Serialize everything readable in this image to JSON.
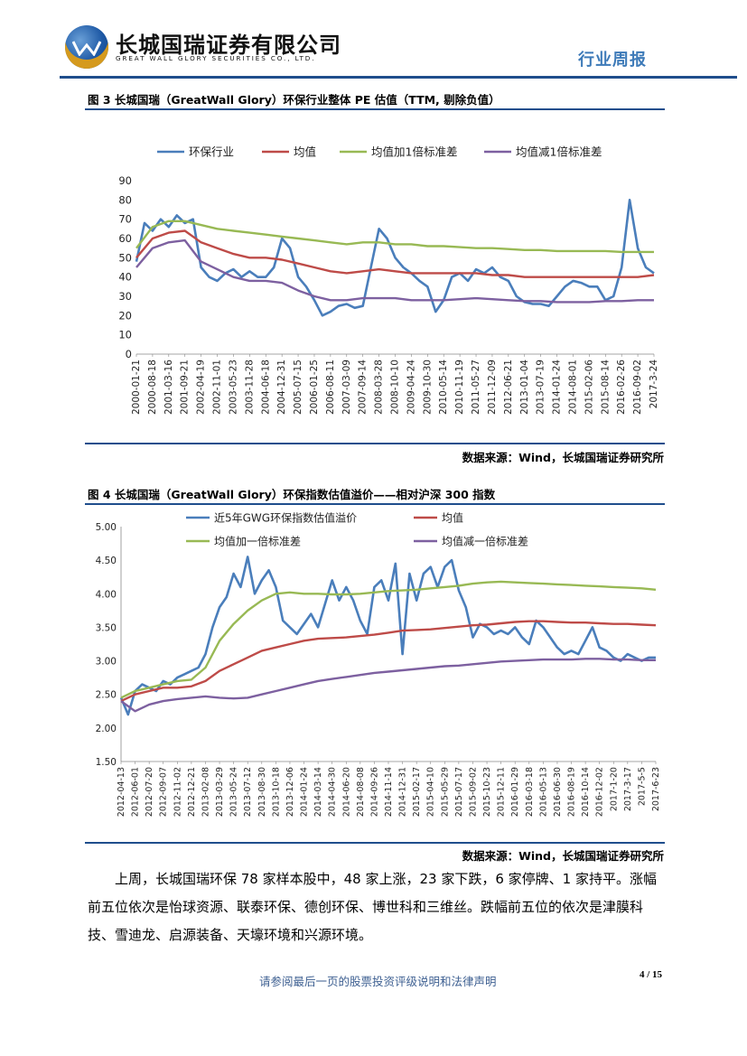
{
  "header": {
    "company_cn": "长城国瑞证券有限公司",
    "company_en": "GREAT WALL GLORY SECURITIES CO., LTD.",
    "doc_type": "行业周报"
  },
  "figure3": {
    "title": "图 3 长城国瑞（GreatWall Glory）环保行业整体 PE 估值（TTM, 剔除负值）",
    "source": "数据来源：Wind，长城国瑞证券研究所"
  },
  "figure4": {
    "title": "图 4 长城国瑞（GreatWall Glory）环保指数估值溢价——相对沪深 300 指数",
    "source": "数据来源：Wind，长城国瑞证券研究所"
  },
  "chart_data": [
    {
      "type": "line",
      "title": "",
      "series_names": [
        "环保行业",
        "均值",
        "均值加1倍标准差",
        "均值减1倍标准差"
      ],
      "series_colors": [
        "#4a7ebb",
        "#be4b48",
        "#98b954",
        "#7d60a0"
      ],
      "legend": "top",
      "ylim": [
        0,
        90
      ],
      "yticks": [
        "0",
        "10",
        "20",
        "30",
        "40",
        "50",
        "60",
        "70",
        "80",
        "90"
      ],
      "x_ticks": [
        "2000-01-21",
        "2000-08-18",
        "2001-03-16",
        "2001-09-21",
        "2002-04-19",
        "2002-11-01",
        "2003-05-23",
        "2003-11-28",
        "2004-06-18",
        "2004-12-31",
        "2005-07-15",
        "2006-01-25",
        "2006-08-11",
        "2007-03-09",
        "2007-09-14",
        "2008-03-28",
        "2008-10-10",
        "2009-04-24",
        "2009-10-30",
        "2010-05-14",
        "2010-11-19",
        "2011-05-27",
        "2011-12-09",
        "2012-06-21",
        "2013-01-04",
        "2013-07-19",
        "2014-01-24",
        "2014-08-01",
        "2015-02-06",
        "2015-08-14",
        "2016-02-26",
        "2016-09-02",
        "2017-3-24"
      ],
      "series": [
        {
          "name": "环保行业",
          "x": [
            0,
            0.5,
            1,
            1.5,
            2,
            2.5,
            3,
            3.5,
            4,
            4.5,
            5,
            5.5,
            6,
            6.5,
            7,
            7.5,
            8,
            8.5,
            9,
            9.5,
            10,
            10.5,
            11,
            11.5,
            12,
            12.5,
            13,
            13.5,
            14,
            14.5,
            15,
            15.5,
            16,
            16.5,
            17,
            17.5,
            18,
            18.5,
            19,
            19.5,
            20,
            20.5,
            21,
            21.5,
            22,
            22.5,
            23,
            23.5,
            24,
            24.5,
            25,
            25.5,
            26,
            26.5,
            27,
            27.5,
            28,
            28.5,
            29,
            29.5,
            30,
            30.5,
            31,
            31.5,
            32
          ],
          "values": [
            48,
            68,
            64,
            70,
            66,
            72,
            68,
            70,
            45,
            40,
            38,
            42,
            44,
            40,
            43,
            40,
            40,
            45,
            60,
            55,
            40,
            35,
            28,
            20,
            22,
            25,
            26,
            24,
            25,
            45,
            65,
            60,
            50,
            45,
            42,
            38,
            35,
            22,
            28,
            40,
            42,
            38,
            44,
            42,
            45,
            40,
            38,
            30,
            27,
            26,
            26,
            25,
            30,
            35,
            38,
            37,
            35,
            35,
            28,
            30,
            45,
            80,
            55,
            45,
            42
          ]
        },
        {
          "name": "均值",
          "x": [
            0,
            1,
            2,
            3,
            4,
            5,
            6,
            7,
            8,
            9,
            10,
            11,
            12,
            13,
            14,
            15,
            16,
            17,
            18,
            19,
            20,
            21,
            22,
            23,
            24,
            25,
            26,
            27,
            28,
            29,
            30,
            31,
            32
          ],
          "values": [
            50,
            60,
            63,
            64,
            58,
            55,
            52,
            50,
            50,
            49,
            47,
            45,
            43,
            42,
            43,
            44,
            43,
            42,
            42,
            42,
            42,
            42,
            41,
            41,
            40,
            40,
            40,
            40,
            40,
            40,
            40,
            40,
            41
          ]
        },
        {
          "name": "均值加1倍标准差",
          "x": [
            0,
            1,
            2,
            3,
            4,
            5,
            6,
            7,
            8,
            9,
            10,
            11,
            12,
            13,
            14,
            15,
            16,
            17,
            18,
            19,
            20,
            21,
            22,
            23,
            24,
            25,
            26,
            27,
            28,
            29,
            30,
            31,
            32
          ],
          "values": [
            55,
            66,
            69,
            69,
            67,
            65,
            64,
            63,
            62,
            61,
            60,
            59,
            58,
            57,
            58,
            58,
            57,
            57,
            56,
            56,
            55.5,
            55,
            55,
            54.5,
            54,
            54,
            53.5,
            53.5,
            53.5,
            53.5,
            53,
            53,
            53
          ]
        },
        {
          "name": "均值减1倍标准差",
          "x": [
            0,
            1,
            2,
            3,
            4,
            5,
            6,
            7,
            8,
            9,
            10,
            11,
            12,
            13,
            14,
            15,
            16,
            17,
            18,
            19,
            20,
            21,
            22,
            23,
            24,
            25,
            26,
            27,
            28,
            29,
            30,
            31,
            32
          ],
          "values": [
            45,
            55,
            58,
            59,
            48,
            44,
            40,
            38,
            38,
            37,
            33,
            30,
            28,
            28,
            29,
            29,
            29,
            28,
            28,
            28,
            28.5,
            29,
            28.5,
            28,
            27.5,
            27.5,
            27,
            27,
            27,
            27.5,
            27.5,
            28,
            28
          ]
        }
      ]
    },
    {
      "type": "line",
      "title": "",
      "series_names": [
        "近5年GWG环保指数估值溢价",
        "均值",
        "均值加一倍标准差",
        "均值减一倍标准差"
      ],
      "series_colors": [
        "#4a7ebb",
        "#be4b48",
        "#98b954",
        "#7d60a0"
      ],
      "legend": "top",
      "ylim": [
        1.5,
        5.0
      ],
      "yticks": [
        "1.50",
        "2.00",
        "2.50",
        "3.00",
        "3.50",
        "4.00",
        "4.50",
        "5.00"
      ],
      "x_ticks": [
        "2012-04-13",
        "2012-06-01",
        "2012-07-20",
        "2012-09-07",
        "2012-11-02",
        "2012-12-21",
        "2013-02-08",
        "2013-03-29",
        "2013-05-24",
        "2013-07-12",
        "2013-08-30",
        "2013-10-18",
        "2013-12-06",
        "2014-01-24",
        "2014-03-14",
        "2014-04-30",
        "2014-06-20",
        "2014-08-08",
        "2014-09-26",
        "2014-11-14",
        "2014-12-31",
        "2015-02-17",
        "2015-04-10",
        "2015-05-29",
        "2015-07-17",
        "2015-09-02",
        "2015-10-23",
        "2015-12-11",
        "2016-01-29",
        "2016-03-18",
        "2016-05-13",
        "2016-06-30",
        "2016-08-19",
        "2016-10-14",
        "2016-12-02",
        "2017-1-20",
        "2017-3-17",
        "2017-5-5",
        "2017-6-23"
      ],
      "series": [
        {
          "name": "近5年GWG环保指数估值溢价",
          "x": [
            0,
            0.5,
            1,
            1.5,
            2,
            2.5,
            3,
            3.5,
            4,
            4.5,
            5,
            5.5,
            6,
            6.5,
            7,
            7.5,
            8,
            8.5,
            9,
            9.5,
            10,
            10.5,
            11,
            11.5,
            12,
            12.5,
            13,
            13.5,
            14,
            14.5,
            15,
            15.5,
            16,
            16.5,
            17,
            17.5,
            18,
            18.5,
            19,
            19.5,
            20,
            20.5,
            21,
            21.5,
            22,
            22.5,
            23,
            23.5,
            24,
            24.5,
            25,
            25.5,
            26,
            26.5,
            27,
            27.5,
            28,
            28.5,
            29,
            29.5,
            30,
            30.5,
            31,
            31.5,
            32,
            32.5,
            33,
            33.5,
            34,
            34.5,
            35,
            35.5,
            36,
            36.5,
            37,
            37.5,
            38
          ],
          "values": [
            2.45,
            2.2,
            2.55,
            2.65,
            2.6,
            2.55,
            2.7,
            2.65,
            2.75,
            2.8,
            2.85,
            2.9,
            3.1,
            3.5,
            3.8,
            3.95,
            4.3,
            4.1,
            4.55,
            4.0,
            4.2,
            4.35,
            4.1,
            3.6,
            3.5,
            3.4,
            3.55,
            3.7,
            3.5,
            3.85,
            4.2,
            3.9,
            4.1,
            3.9,
            3.6,
            3.4,
            4.1,
            4.2,
            3.9,
            4.45,
            3.1,
            4.3,
            3.9,
            4.3,
            4.4,
            4.1,
            4.4,
            4.5,
            4.05,
            3.8,
            3.35,
            3.55,
            3.5,
            3.4,
            3.45,
            3.4,
            3.5,
            3.35,
            3.25,
            3.6,
            3.5,
            3.35,
            3.2,
            3.1,
            3.15,
            3.1,
            3.3,
            3.5,
            3.2,
            3.15,
            3.05,
            3.0,
            3.1,
            3.05,
            3.0,
            3.05,
            3.05
          ]
        },
        {
          "name": "均值",
          "x": [
            0,
            1,
            2,
            3,
            4,
            5,
            6,
            7,
            8,
            9,
            10,
            11,
            12,
            13,
            14,
            15,
            16,
            17,
            18,
            19,
            20,
            21,
            22,
            23,
            24,
            25,
            26,
            27,
            28,
            29,
            30,
            31,
            32,
            33,
            34,
            35,
            36,
            37,
            38
          ],
          "values": [
            2.4,
            2.5,
            2.55,
            2.6,
            2.6,
            2.62,
            2.7,
            2.85,
            2.95,
            3.05,
            3.15,
            3.2,
            3.25,
            3.3,
            3.33,
            3.34,
            3.35,
            3.37,
            3.39,
            3.42,
            3.45,
            3.46,
            3.47,
            3.49,
            3.51,
            3.53,
            3.54,
            3.56,
            3.58,
            3.59,
            3.59,
            3.58,
            3.57,
            3.57,
            3.56,
            3.55,
            3.55,
            3.54,
            3.53
          ]
        },
        {
          "name": "均值加一倍标准差",
          "x": [
            0,
            1,
            2,
            3,
            4,
            5,
            6,
            7,
            8,
            9,
            10,
            11,
            12,
            13,
            14,
            15,
            16,
            17,
            18,
            19,
            20,
            21,
            22,
            23,
            24,
            25,
            26,
            27,
            28,
            29,
            30,
            31,
            32,
            33,
            34,
            35,
            36,
            37,
            38
          ],
          "values": [
            2.45,
            2.55,
            2.6,
            2.65,
            2.7,
            2.72,
            2.9,
            3.3,
            3.55,
            3.75,
            3.9,
            4.0,
            4.02,
            4.0,
            4.0,
            3.99,
            3.99,
            4.0,
            4.02,
            4.04,
            4.05,
            4.06,
            4.08,
            4.1,
            4.12,
            4.15,
            4.17,
            4.18,
            4.17,
            4.16,
            4.15,
            4.14,
            4.13,
            4.12,
            4.11,
            4.1,
            4.09,
            4.08,
            4.06
          ]
        },
        {
          "name": "均值减一倍标准差",
          "x": [
            0,
            1,
            2,
            3,
            4,
            5,
            6,
            7,
            8,
            9,
            10,
            11,
            12,
            13,
            14,
            15,
            16,
            17,
            18,
            19,
            20,
            21,
            22,
            23,
            24,
            25,
            26,
            27,
            28,
            29,
            30,
            31,
            32,
            33,
            34,
            35,
            36,
            37,
            38
          ],
          "values": [
            2.4,
            2.25,
            2.35,
            2.4,
            2.43,
            2.45,
            2.47,
            2.45,
            2.44,
            2.45,
            2.5,
            2.55,
            2.6,
            2.65,
            2.7,
            2.73,
            2.76,
            2.79,
            2.82,
            2.84,
            2.86,
            2.88,
            2.9,
            2.92,
            2.93,
            2.95,
            2.97,
            2.99,
            3.0,
            3.01,
            3.02,
            3.02,
            3.02,
            3.03,
            3.03,
            3.02,
            3.02,
            3.01,
            3.01
          ]
        }
      ]
    }
  ],
  "body": {
    "paragraph": "上周，长城国瑞环保 78 家样本股中，48 家上涨，23 家下跌，6 家停牌、1 家持平。涨幅前五位依次是怡球资源、联泰环保、德创环保、博世科和三维丝。跌幅前五位的依次是津膜科技、雪迪龙、启源装备、天壕环境和兴源环境。"
  },
  "footer": {
    "disclaimer": "请参阅最后一页的股票投资评级说明和法律声明",
    "page_number": "4 / 15"
  }
}
